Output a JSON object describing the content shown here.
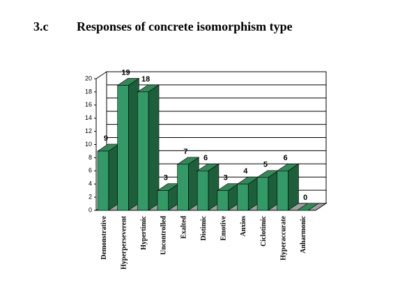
{
  "chart_data": {
    "type": "bar3d",
    "label": "3.c",
    "title": "Responses of concrete isomorphism type",
    "categories": [
      "Demonstrative",
      "Hyperperseverent",
      "Hypertimic",
      "Uncontrolled",
      "Exalted",
      "Distimic",
      "Emotive",
      "Anxios",
      "Ciclotimic",
      "Hyperaccurate",
      "Anharmonic"
    ],
    "values": [
      9,
      19,
      18,
      3,
      7,
      6,
      3,
      4,
      5,
      6,
      0
    ],
    "color": "#339966",
    "side_color": "#1d5e3b",
    "top_color": "#2f8a57",
    "ylim": [
      0,
      20
    ],
    "yticks": [
      0,
      2,
      4,
      6,
      8,
      10,
      12,
      14,
      16,
      18,
      20
    ],
    "grid": true
  }
}
